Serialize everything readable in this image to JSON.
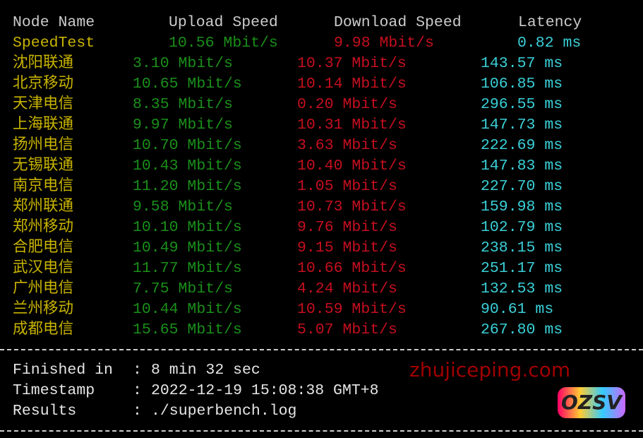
{
  "header": {
    "node": "Node Name",
    "upload": "Upload Speed",
    "download": "Download Speed",
    "latency": "Latency"
  },
  "rows": [
    {
      "node": "SpeedTest",
      "upload": "10.56 Mbit/s",
      "download": "9.98 Mbit/s",
      "latency": "0.82 ms"
    },
    {
      "node": "沈阳联通",
      "upload": "3.10 Mbit/s",
      "download": "10.37 Mbit/s",
      "latency": "143.57 ms"
    },
    {
      "node": "北京移动",
      "upload": "10.65 Mbit/s",
      "download": "10.14 Mbit/s",
      "latency": "106.85 ms"
    },
    {
      "node": "天津电信",
      "upload": "8.35 Mbit/s",
      "download": "0.20 Mbit/s",
      "latency": "296.55 ms"
    },
    {
      "node": "上海联通",
      "upload": "9.97 Mbit/s",
      "download": "10.31 Mbit/s",
      "latency": "147.73 ms"
    },
    {
      "node": "扬州电信",
      "upload": "10.70 Mbit/s",
      "download": "3.63 Mbit/s",
      "latency": "222.69 ms"
    },
    {
      "node": "无锡联通",
      "upload": "10.43 Mbit/s",
      "download": "10.40 Mbit/s",
      "latency": "147.83 ms"
    },
    {
      "node": "南京电信",
      "upload": "11.20 Mbit/s",
      "download": "1.05 Mbit/s",
      "latency": "227.70 ms"
    },
    {
      "node": "郑州联通",
      "upload": "9.58 Mbit/s",
      "download": "10.73 Mbit/s",
      "latency": "159.98 ms"
    },
    {
      "node": "郑州移动",
      "upload": "10.10 Mbit/s",
      "download": "9.76 Mbit/s",
      "latency": "102.79 ms"
    },
    {
      "node": "合肥电信",
      "upload": "10.49 Mbit/s",
      "download": "9.15 Mbit/s",
      "latency": "238.15 ms"
    },
    {
      "node": "武汉电信",
      "upload": "11.77 Mbit/s",
      "download": "10.66 Mbit/s",
      "latency": "251.17 ms"
    },
    {
      "node": "广州电信",
      "upload": "7.75 Mbit/s",
      "download": "4.24 Mbit/s",
      "latency": "132.53 ms"
    },
    {
      "node": "兰州移动",
      "upload": "10.44 Mbit/s",
      "download": "10.59 Mbit/s",
      "latency": "90.61 ms"
    },
    {
      "node": "成都电信",
      "upload": "15.65 Mbit/s",
      "download": "5.07 Mbit/s",
      "latency": "267.80 ms"
    }
  ],
  "footer": [
    {
      "label": "Finished in",
      "value": "8 min 32 sec"
    },
    {
      "label": "Timestamp",
      "value": "2022-12-19 15:08:38 GMT+8"
    },
    {
      "label": "Results",
      "value": "./superbench.log"
    }
  ],
  "separator": ":",
  "watermark": {
    "text": "zhujiceping.com",
    "logo": "OZSV"
  },
  "colors": {
    "node": "#c8b400",
    "upload": "#1a8f1a",
    "download": "#c50f1f",
    "latency": "#3ad0d8"
  }
}
